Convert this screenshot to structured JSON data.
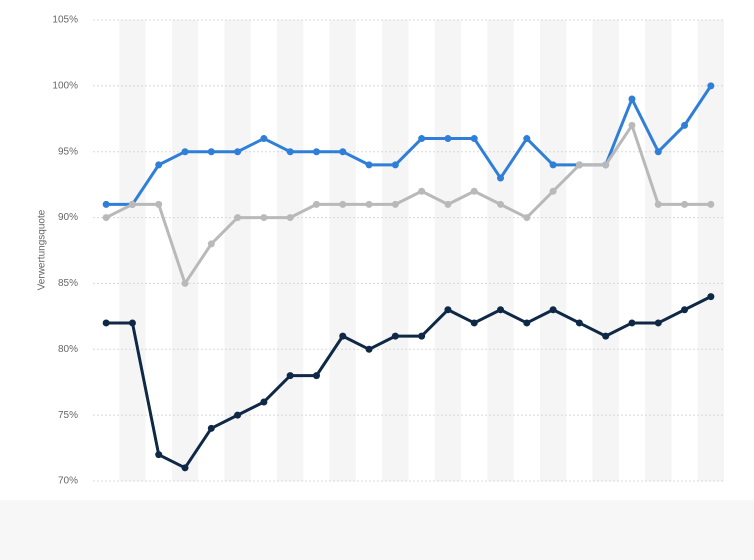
{
  "chart_data": {
    "type": "line",
    "y_label": "Verwertungsquote",
    "categories": [
      null,
      null,
      null,
      null,
      null,
      null,
      null,
      null,
      null,
      null,
      null,
      null,
      null,
      null,
      null,
      null,
      null,
      null,
      null,
      null,
      null,
      null,
      null,
      null
    ],
    "series": [
      {
        "color": "#2f7ed8",
        "values": [
          91,
          91,
          94,
          95,
          95,
          95,
          96,
          95,
          95,
          95,
          94,
          94,
          96,
          96,
          96,
          93,
          96,
          94,
          94,
          94,
          99,
          95,
          97,
          100
        ]
      },
      {
        "color": "#b9b9b9",
        "values": [
          90,
          91,
          91,
          85,
          88,
          90,
          90,
          90,
          91,
          91,
          91,
          91,
          92,
          91,
          92,
          91,
          90,
          92,
          94,
          94,
          97,
          91,
          91,
          91
        ]
      },
      {
        "color": "#0f2846",
        "values": [
          82,
          82,
          72,
          71,
          74,
          75,
          76,
          78,
          78,
          81,
          80,
          81,
          81,
          83,
          82,
          83,
          82,
          83,
          82,
          81,
          82,
          82,
          83,
          84
        ]
      }
    ],
    "ylim": [
      70,
      105
    ],
    "yticks": [
      {
        "value": 70,
        "label": "70%"
      },
      {
        "value": 75,
        "label": "75%"
      },
      {
        "value": 80,
        "label": "80%"
      },
      {
        "value": 85,
        "label": "85%"
      },
      {
        "value": 90,
        "label": "90%"
      },
      {
        "value": 95,
        "label": "95%"
      },
      {
        "value": 100,
        "label": "100%"
      },
      {
        "value": 105,
        "label": "105%"
      }
    ],
    "grid": true,
    "striped": true
  }
}
